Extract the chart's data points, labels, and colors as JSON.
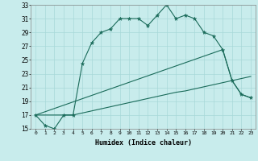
{
  "xlabel": "Humidex (Indice chaleur)",
  "ylabel": "",
  "bg_color": "#c8ecec",
  "grid_color": "#a8d8d8",
  "line_color": "#1a6b5a",
  "xlim": [
    -0.5,
    23.5
  ],
  "ylim": [
    15,
    33
  ],
  "xticks": [
    0,
    1,
    2,
    3,
    4,
    5,
    6,
    7,
    8,
    9,
    10,
    11,
    12,
    13,
    14,
    15,
    16,
    17,
    18,
    19,
    20,
    21,
    22,
    23
  ],
  "yticks": [
    15,
    17,
    19,
    21,
    23,
    25,
    27,
    29,
    31,
    33
  ],
  "series1_x": [
    0,
    1,
    2,
    3,
    4,
    5,
    6,
    7,
    8,
    9,
    10,
    11,
    12,
    13,
    14,
    15,
    16,
    17,
    18,
    19,
    20,
    21,
    22,
    23
  ],
  "series1_y": [
    17,
    15.5,
    15,
    17,
    17,
    24.5,
    27.5,
    29,
    29.5,
    31,
    31,
    31,
    30,
    31.5,
    33,
    31,
    31.5,
    31,
    29,
    28.5,
    26.5,
    22,
    20,
    19.5
  ],
  "series2_x": [
    0,
    1,
    2,
    3,
    4,
    5,
    6,
    7,
    8,
    9,
    10,
    11,
    12,
    13,
    14,
    15,
    16,
    17,
    18,
    19,
    20,
    21,
    22,
    23
  ],
  "series2_y": [
    17,
    17,
    17,
    17,
    17,
    17.3,
    17.6,
    17.9,
    18.2,
    18.5,
    18.8,
    19.1,
    19.4,
    19.7,
    20.0,
    20.3,
    20.5,
    20.8,
    21.1,
    21.4,
    21.7,
    22.0,
    22.3,
    22.6
  ],
  "series3_x": [
    0,
    20,
    21,
    22,
    23
  ],
  "series3_y": [
    17,
    26.5,
    22,
    20,
    19.5
  ]
}
